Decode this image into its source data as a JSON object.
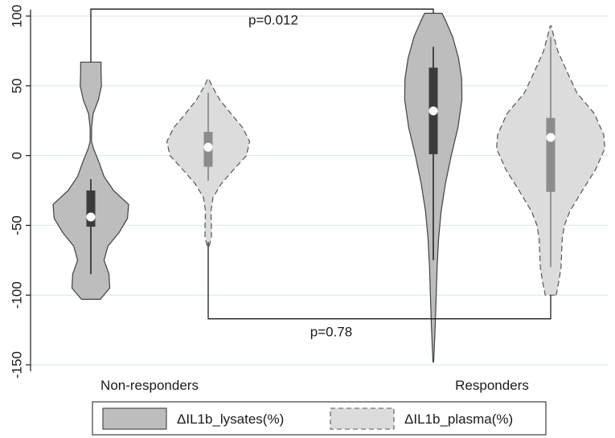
{
  "chart_data": {
    "type": "violin",
    "title": "",
    "xlabel": "",
    "ylabel": "",
    "ylim": [
      -155,
      105
    ],
    "yticks": [
      100,
      50,
      0,
      -50,
      -100,
      -150
    ],
    "ytick_labels": [
      "100",
      "50",
      "0",
      "-50",
      "-100",
      "-150"
    ],
    "grid": "horizontal",
    "categories": [
      "Non-responders",
      "Responders"
    ],
    "legend": {
      "placement": "bottom"
    },
    "series": [
      {
        "name": "ΔIL1b_lysates(%)",
        "fill": "#bdbdbd",
        "stroke": "#404040",
        "dashed": false,
        "groups": [
          {
            "category": "Non-responders",
            "min": -85,
            "q1": -51,
            "median": -44,
            "q3": -25,
            "max": -17,
            "density": [
              [
                -103,
                0.25
              ],
              [
                -95,
                0.5
              ],
              [
                -85,
                0.48
              ],
              [
                -75,
                0.35
              ],
              [
                -65,
                0.45
              ],
              [
                -55,
                0.75
              ],
              [
                -45,
                0.97
              ],
              [
                -35,
                1.0
              ],
              [
                -25,
                0.6
              ],
              [
                -15,
                0.35
              ],
              [
                -5,
                0.22
              ],
              [
                5,
                0.07
              ],
              [
                10,
                0.02
              ],
              [
                20,
                0.02
              ],
              [
                30,
                0.06
              ],
              [
                40,
                0.2
              ],
              [
                50,
                0.28
              ],
              [
                60,
                0.27
              ],
              [
                67,
                0.27
              ]
            ]
          },
          {
            "category": "Responders",
            "min": -75,
            "q1": 1,
            "median": 32,
            "q3": 63,
            "max": 78,
            "density": [
              [
                -148,
                0.01
              ],
              [
                -135,
                0.04
              ],
              [
                -120,
                0.07
              ],
              [
                -100,
                0.1
              ],
              [
                -80,
                0.13
              ],
              [
                -60,
                0.18
              ],
              [
                -40,
                0.27
              ],
              [
                -20,
                0.42
              ],
              [
                0,
                0.62
              ],
              [
                20,
                0.85
              ],
              [
                40,
                0.99
              ],
              [
                55,
                0.98
              ],
              [
                70,
                0.87
              ],
              [
                85,
                0.67
              ],
              [
                97,
                0.42
              ],
              [
                102,
                0.3
              ]
            ]
          }
        ]
      },
      {
        "name": "ΔIL1b_plasma(%)",
        "fill": "#dcdcdc",
        "stroke": "#555555",
        "dashed": true,
        "groups": [
          {
            "category": "Non-responders",
            "min": -18,
            "q1": -8,
            "median": 6,
            "q3": 17,
            "max": 45,
            "density": [
              [
                -65,
                0.02
              ],
              [
                -58,
                0.06
              ],
              [
                -50,
                0.06
              ],
              [
                -40,
                0.05
              ],
              [
                -30,
                0.09
              ],
              [
                -20,
                0.25
              ],
              [
                -10,
                0.48
              ],
              [
                0,
                0.72
              ],
              [
                10,
                0.78
              ],
              [
                20,
                0.65
              ],
              [
                30,
                0.43
              ],
              [
                40,
                0.22
              ],
              [
                50,
                0.07
              ],
              [
                55,
                0.01
              ]
            ]
          },
          {
            "category": "Responders",
            "min": -80,
            "q1": -26,
            "median": 13,
            "q3": 27,
            "max": 85,
            "density": [
              [
                -100,
                0.1
              ],
              [
                -90,
                0.15
              ],
              [
                -80,
                0.19
              ],
              [
                -70,
                0.2
              ],
              [
                -60,
                0.21
              ],
              [
                -50,
                0.25
              ],
              [
                -40,
                0.35
              ],
              [
                -25,
                0.58
              ],
              [
                -10,
                0.82
              ],
              [
                5,
                0.99
              ],
              [
                15,
                0.97
              ],
              [
                30,
                0.8
              ],
              [
                45,
                0.48
              ],
              [
                60,
                0.3
              ],
              [
                75,
                0.13
              ],
              [
                88,
                0.04
              ],
              [
                93,
                0.01
              ]
            ]
          }
        ]
      }
    ],
    "annotations": [
      {
        "text": "p=0.012",
        "y_bracket": 105,
        "from": "Non-responders|ΔIL1b_lysates(%)",
        "to": "Responders|ΔIL1b_lysates(%)",
        "from_drop_to": 67,
        "to_drop_to": 102
      },
      {
        "text": "p=0.78",
        "y_bracket": -117,
        "from": "Non-responders|ΔIL1b_plasma(%)",
        "to": "Responders|ΔIL1b_plasma(%)",
        "from_drop_to": -62,
        "to_drop_to": -100
      }
    ]
  }
}
